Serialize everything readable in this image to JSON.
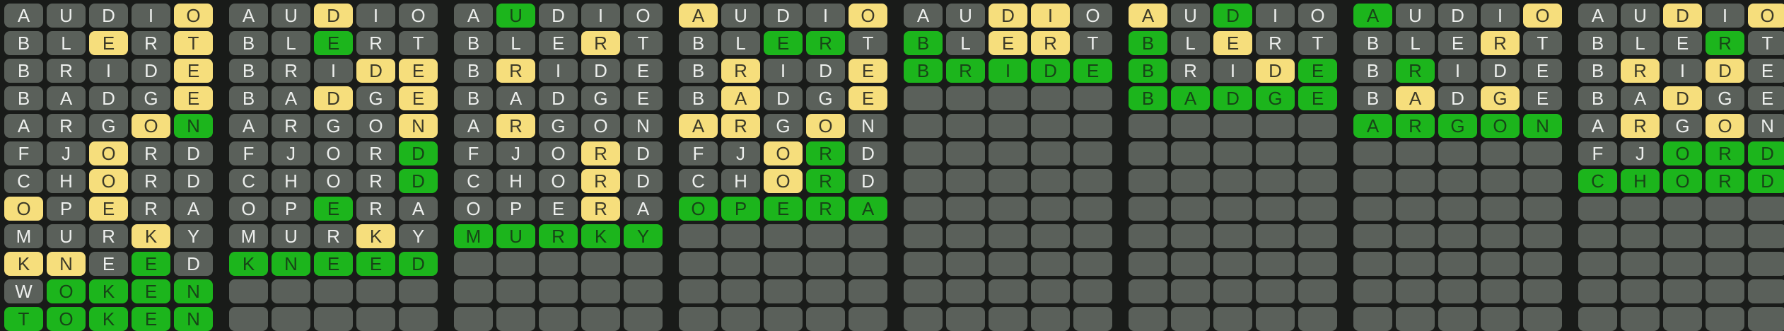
{
  "colors": {
    "background": "#191b19",
    "tile_absent": "#5a605a",
    "tile_present": "#f6de7c",
    "tile_correct": "#1cb51c",
    "letter_on_absent": "#edefed",
    "letter_on_present": "#3c3a29",
    "letter_on_correct": "#174517"
  },
  "grid": {
    "boards": 8,
    "rows_per_board": 12,
    "cols": 5
  },
  "state_legend": {
    "a": "absent",
    "y": "present",
    "g": "correct",
    "e": "empty"
  },
  "boards": [
    {
      "id": 1,
      "guesses": [
        {
          "word": "AUDIO",
          "states": "aaaay"
        },
        {
          "word": "BLERT",
          "states": "aayay"
        },
        {
          "word": "BRIDE",
          "states": "aaaay"
        },
        {
          "word": "BADGE",
          "states": "aaaay"
        },
        {
          "word": "ARGON",
          "states": "aaayg"
        },
        {
          "word": "FJORD",
          "states": "aayaa"
        },
        {
          "word": "CHORD",
          "states": "aayaa"
        },
        {
          "word": "OPERA",
          "states": "yayaa"
        },
        {
          "word": "MURKY",
          "states": "aaaya"
        },
        {
          "word": "KNEED",
          "states": "yyaga"
        },
        {
          "word": "WOKEN",
          "states": "agggg"
        },
        {
          "word": "TOKEN",
          "states": "ggggg"
        }
      ]
    },
    {
      "id": 2,
      "guesses": [
        {
          "word": "AUDIO",
          "states": "aayaa"
        },
        {
          "word": "BLERT",
          "states": "aagaa"
        },
        {
          "word": "BRIDE",
          "states": "aaayy"
        },
        {
          "word": "BADGE",
          "states": "aayay"
        },
        {
          "word": "ARGON",
          "states": "aaaay"
        },
        {
          "word": "FJORD",
          "states": "aaaag"
        },
        {
          "word": "CHORD",
          "states": "aaaag"
        },
        {
          "word": "OPERA",
          "states": "aagaa"
        },
        {
          "word": "MURKY",
          "states": "aaaya"
        },
        {
          "word": "KNEED",
          "states": "ggggg"
        },
        {
          "word": "",
          "states": ""
        },
        {
          "word": "",
          "states": ""
        }
      ]
    },
    {
      "id": 3,
      "guesses": [
        {
          "word": "AUDIO",
          "states": "agaaa"
        },
        {
          "word": "BLERT",
          "states": "aaaya"
        },
        {
          "word": "BRIDE",
          "states": "ayaaa"
        },
        {
          "word": "BADGE",
          "states": "aaaaa"
        },
        {
          "word": "ARGON",
          "states": "ayaaa"
        },
        {
          "word": "FJORD",
          "states": "aaaya"
        },
        {
          "word": "CHORD",
          "states": "aaaya"
        },
        {
          "word": "OPERA",
          "states": "aaaya"
        },
        {
          "word": "MURKY",
          "states": "ggggg"
        },
        {
          "word": "",
          "states": ""
        },
        {
          "word": "",
          "states": ""
        },
        {
          "word": "",
          "states": ""
        }
      ]
    },
    {
      "id": 4,
      "guesses": [
        {
          "word": "AUDIO",
          "states": "yaaay"
        },
        {
          "word": "BLERT",
          "states": "aagga"
        },
        {
          "word": "BRIDE",
          "states": "ayaay"
        },
        {
          "word": "BADGE",
          "states": "ayaay"
        },
        {
          "word": "ARGON",
          "states": "yyaya"
        },
        {
          "word": "FJORD",
          "states": "aayga"
        },
        {
          "word": "CHORD",
          "states": "aayga"
        },
        {
          "word": "OPERA",
          "states": "ggggg"
        },
        {
          "word": "",
          "states": ""
        },
        {
          "word": "",
          "states": ""
        },
        {
          "word": "",
          "states": ""
        },
        {
          "word": "",
          "states": ""
        }
      ]
    },
    {
      "id": 5,
      "guesses": [
        {
          "word": "AUDIO",
          "states": "aayya"
        },
        {
          "word": "BLERT",
          "states": "gayya"
        },
        {
          "word": "BRIDE",
          "states": "ggggg"
        },
        {
          "word": "",
          "states": ""
        },
        {
          "word": "",
          "states": ""
        },
        {
          "word": "",
          "states": ""
        },
        {
          "word": "",
          "states": ""
        },
        {
          "word": "",
          "states": ""
        },
        {
          "word": "",
          "states": ""
        },
        {
          "word": "",
          "states": ""
        },
        {
          "word": "",
          "states": ""
        },
        {
          "word": "",
          "states": ""
        }
      ]
    },
    {
      "id": 6,
      "guesses": [
        {
          "word": "AUDIO",
          "states": "yagaa"
        },
        {
          "word": "BLERT",
          "states": "gayaa"
        },
        {
          "word": "BRIDE",
          "states": "gaayg"
        },
        {
          "word": "BADGE",
          "states": "ggggg"
        },
        {
          "word": "",
          "states": ""
        },
        {
          "word": "",
          "states": ""
        },
        {
          "word": "",
          "states": ""
        },
        {
          "word": "",
          "states": ""
        },
        {
          "word": "",
          "states": ""
        },
        {
          "word": "",
          "states": ""
        },
        {
          "word": "",
          "states": ""
        },
        {
          "word": "",
          "states": ""
        }
      ]
    },
    {
      "id": 7,
      "guesses": [
        {
          "word": "AUDIO",
          "states": "gaaay"
        },
        {
          "word": "BLERT",
          "states": "aaaya"
        },
        {
          "word": "BRIDE",
          "states": "agaaa"
        },
        {
          "word": "BADGE",
          "states": "ayaya"
        },
        {
          "word": "ARGON",
          "states": "ggggg"
        },
        {
          "word": "",
          "states": ""
        },
        {
          "word": "",
          "states": ""
        },
        {
          "word": "",
          "states": ""
        },
        {
          "word": "",
          "states": ""
        },
        {
          "word": "",
          "states": ""
        },
        {
          "word": "",
          "states": ""
        },
        {
          "word": "",
          "states": ""
        }
      ]
    },
    {
      "id": 8,
      "guesses": [
        {
          "word": "AUDIO",
          "states": "aayay"
        },
        {
          "word": "BLERT",
          "states": "aaaga"
        },
        {
          "word": "BRIDE",
          "states": "ayaya"
        },
        {
          "word": "BADGE",
          "states": "aayaa"
        },
        {
          "word": "ARGON",
          "states": "ayaya"
        },
        {
          "word": "FJORD",
          "states": "aaggg"
        },
        {
          "word": "CHORD",
          "states": "ggggg"
        },
        {
          "word": "",
          "states": ""
        },
        {
          "word": "",
          "states": ""
        },
        {
          "word": "",
          "states": ""
        },
        {
          "word": "",
          "states": ""
        },
        {
          "word": "",
          "states": ""
        }
      ]
    }
  ]
}
